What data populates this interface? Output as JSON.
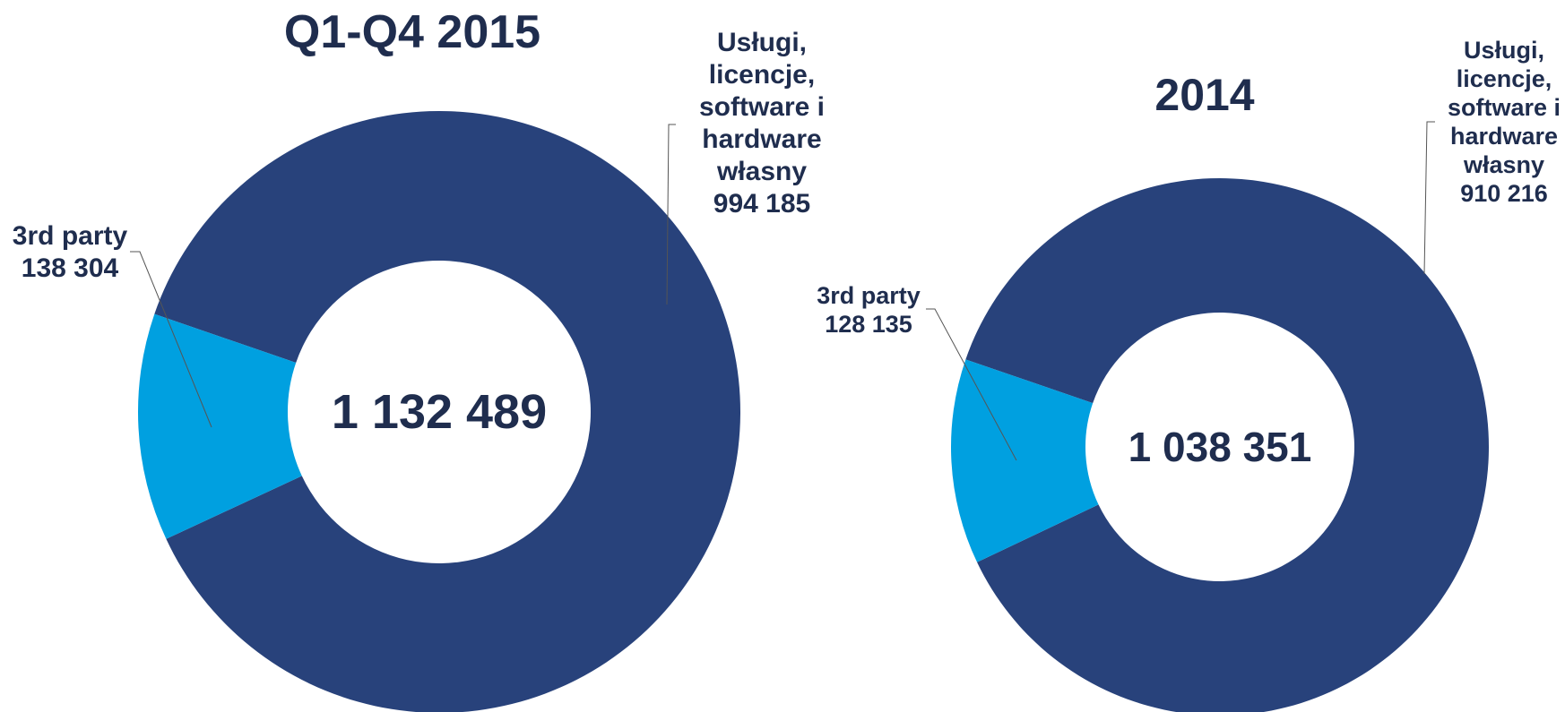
{
  "chart_data": [
    {
      "type": "donut",
      "title": "Q1-Q4 2015",
      "center_label": "1 132 489",
      "categories": [
        "Usługi, licencje, software i hardware własny",
        "3rd party"
      ],
      "values": [
        994185,
        138304
      ],
      "value_labels": [
        "994 185",
        "138 304"
      ],
      "colors": [
        "#28427b",
        "#00a0e0"
      ]
    },
    {
      "type": "donut",
      "title": "2014",
      "center_label": "1 038 351",
      "categories": [
        "Usługi, licencje, software i hardware własny",
        "3rd party"
      ],
      "values": [
        910216,
        128135
      ],
      "value_labels": [
        "910 216",
        "128 135"
      ],
      "colors": [
        "#28427b",
        "#00a0e0"
      ]
    }
  ]
}
